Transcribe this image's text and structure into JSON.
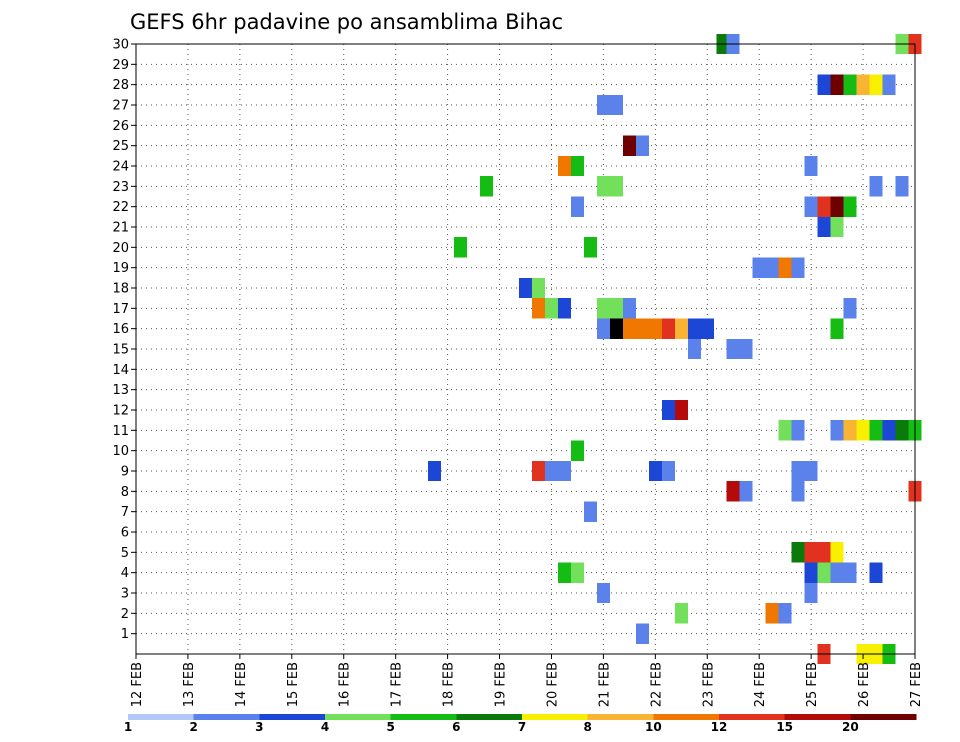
{
  "chart_data": {
    "type": "heatmap",
    "title": "GEFS 6hr padavine po ansamblima Bihac",
    "x_tick_labels": [
      "12 FEB",
      "13 FEB",
      "14 FEB",
      "15 FEB",
      "16 FEB",
      "17 FEB",
      "18 FEB",
      "19 FEB",
      "20 FEB",
      "21 FEB",
      "22 FEB",
      "23 FEB",
      "24 FEB",
      "25 FEB",
      "26 FEB",
      "27 FEB"
    ],
    "x_range_days": [
      12,
      27
    ],
    "y_tick_labels": [
      "1",
      "2",
      "3",
      "4",
      "5",
      "6",
      "7",
      "8",
      "9",
      "10",
      "11",
      "12",
      "13",
      "14",
      "15",
      "16",
      "17",
      "18",
      "19",
      "20",
      "21",
      "22",
      "23",
      "24",
      "25",
      "26",
      "27",
      "28",
      "29",
      "30"
    ],
    "y_range": [
      0,
      30
    ],
    "grid": true,
    "legend": {
      "placement": "bottom",
      "colors": [
        "#b4c8f8",
        "#5a82ea",
        "#1c46d6",
        "#72e05a",
        "#14bc14",
        "#0a7a0a",
        "#f8f000",
        "#f8b432",
        "#f07800",
        "#e0321e",
        "#b40a0a",
        "#6e0000"
      ],
      "labels": [
        "1",
        "2",
        "3",
        "4",
        "5",
        "6",
        "7",
        "8",
        "10",
        "12",
        "15",
        "20"
      ]
    },
    "cells": [
      [
        30,
        23.3,
        5
      ],
      [
        30,
        23.5,
        1
      ],
      [
        30,
        26.75,
        3
      ],
      [
        30,
        27.0,
        9
      ],
      [
        28,
        25.25,
        2
      ],
      [
        28,
        25.5,
        11
      ],
      [
        28,
        25.75,
        4
      ],
      [
        28,
        26.0,
        7
      ],
      [
        28,
        26.25,
        6
      ],
      [
        28,
        26.5,
        1
      ],
      [
        27,
        21.0,
        1
      ],
      [
        27,
        21.25,
        1
      ],
      [
        25,
        21.5,
        11
      ],
      [
        25,
        21.75,
        1
      ],
      [
        24,
        20.25,
        8
      ],
      [
        24,
        20.5,
        4
      ],
      [
        24,
        25.0,
        1
      ],
      [
        23,
        18.75,
        4
      ],
      [
        23,
        21.0,
        3
      ],
      [
        23,
        21.25,
        3
      ],
      [
        23,
        26.25,
        1
      ],
      [
        23,
        26.75,
        1
      ],
      [
        22,
        20.5,
        1
      ],
      [
        22,
        25.0,
        1
      ],
      [
        22,
        25.25,
        9
      ],
      [
        22,
        25.5,
        11
      ],
      [
        22,
        25.75,
        4
      ],
      [
        21,
        25.25,
        2
      ],
      [
        21,
        25.5,
        3
      ],
      [
        20,
        18.25,
        4
      ],
      [
        20,
        20.75,
        4
      ],
      [
        19,
        24.0,
        1
      ],
      [
        19,
        24.25,
        1
      ],
      [
        19,
        24.5,
        8
      ],
      [
        19,
        24.75,
        1
      ],
      [
        18,
        19.5,
        2
      ],
      [
        18,
        19.75,
        3
      ],
      [
        17,
        19.75,
        8
      ],
      [
        17,
        20.0,
        3
      ],
      [
        17,
        20.25,
        2
      ],
      [
        17,
        21.0,
        3
      ],
      [
        17,
        21.25,
        3
      ],
      [
        17,
        21.5,
        1
      ],
      [
        17,
        25.75,
        1
      ],
      [
        16,
        21.0,
        1
      ],
      [
        16,
        21.25,
        12
      ],
      [
        16,
        21.5,
        8
      ],
      [
        16,
        21.75,
        8
      ],
      [
        16,
        22.0,
        8
      ],
      [
        16,
        22.25,
        9
      ],
      [
        16,
        22.5,
        7
      ],
      [
        16,
        22.75,
        2
      ],
      [
        16,
        23.0,
        2
      ],
      [
        16,
        25.5,
        4
      ],
      [
        15,
        22.75,
        1
      ],
      [
        15,
        23.5,
        1
      ],
      [
        15,
        23.75,
        1
      ],
      [
        12,
        22.25,
        2
      ],
      [
        12,
        22.5,
        10
      ],
      [
        11,
        24.5,
        3
      ],
      [
        11,
        24.75,
        1
      ],
      [
        11,
        25.5,
        1
      ],
      [
        11,
        25.75,
        7
      ],
      [
        11,
        26.0,
        6
      ],
      [
        11,
        26.25,
        4
      ],
      [
        11,
        26.5,
        2
      ],
      [
        11,
        26.75,
        5
      ],
      [
        11,
        27.0,
        4
      ],
      [
        10,
        20.5,
        4
      ],
      [
        9,
        17.75,
        2
      ],
      [
        9,
        19.75,
        9
      ],
      [
        9,
        20.0,
        1
      ],
      [
        9,
        20.25,
        1
      ],
      [
        9,
        22.0,
        2
      ],
      [
        9,
        22.25,
        1
      ],
      [
        9,
        24.75,
        1
      ],
      [
        9,
        25.0,
        1
      ],
      [
        8,
        23.5,
        10
      ],
      [
        8,
        23.75,
        1
      ],
      [
        8,
        24.75,
        1
      ],
      [
        8,
        27.0,
        9
      ],
      [
        7,
        20.75,
        1
      ],
      [
        5,
        24.75,
        5
      ],
      [
        5,
        25.0,
        9
      ],
      [
        5,
        25.25,
        9
      ],
      [
        5,
        25.5,
        6
      ],
      [
        4,
        20.25,
        4
      ],
      [
        4,
        20.5,
        3
      ],
      [
        4,
        25.0,
        2
      ],
      [
        4,
        25.25,
        3
      ],
      [
        4,
        25.5,
        1
      ],
      [
        4,
        25.75,
        1
      ],
      [
        4,
        26.25,
        2
      ],
      [
        3,
        21.0,
        1
      ],
      [
        3,
        25.0,
        1
      ],
      [
        2,
        22.5,
        3
      ],
      [
        2,
        24.25,
        8
      ],
      [
        2,
        24.5,
        1
      ],
      [
        1,
        21.75,
        1
      ],
      [
        0,
        25.25,
        9
      ],
      [
        0,
        26.0,
        6
      ],
      [
        0,
        26.25,
        6
      ],
      [
        0,
        26.5,
        4
      ]
    ]
  }
}
